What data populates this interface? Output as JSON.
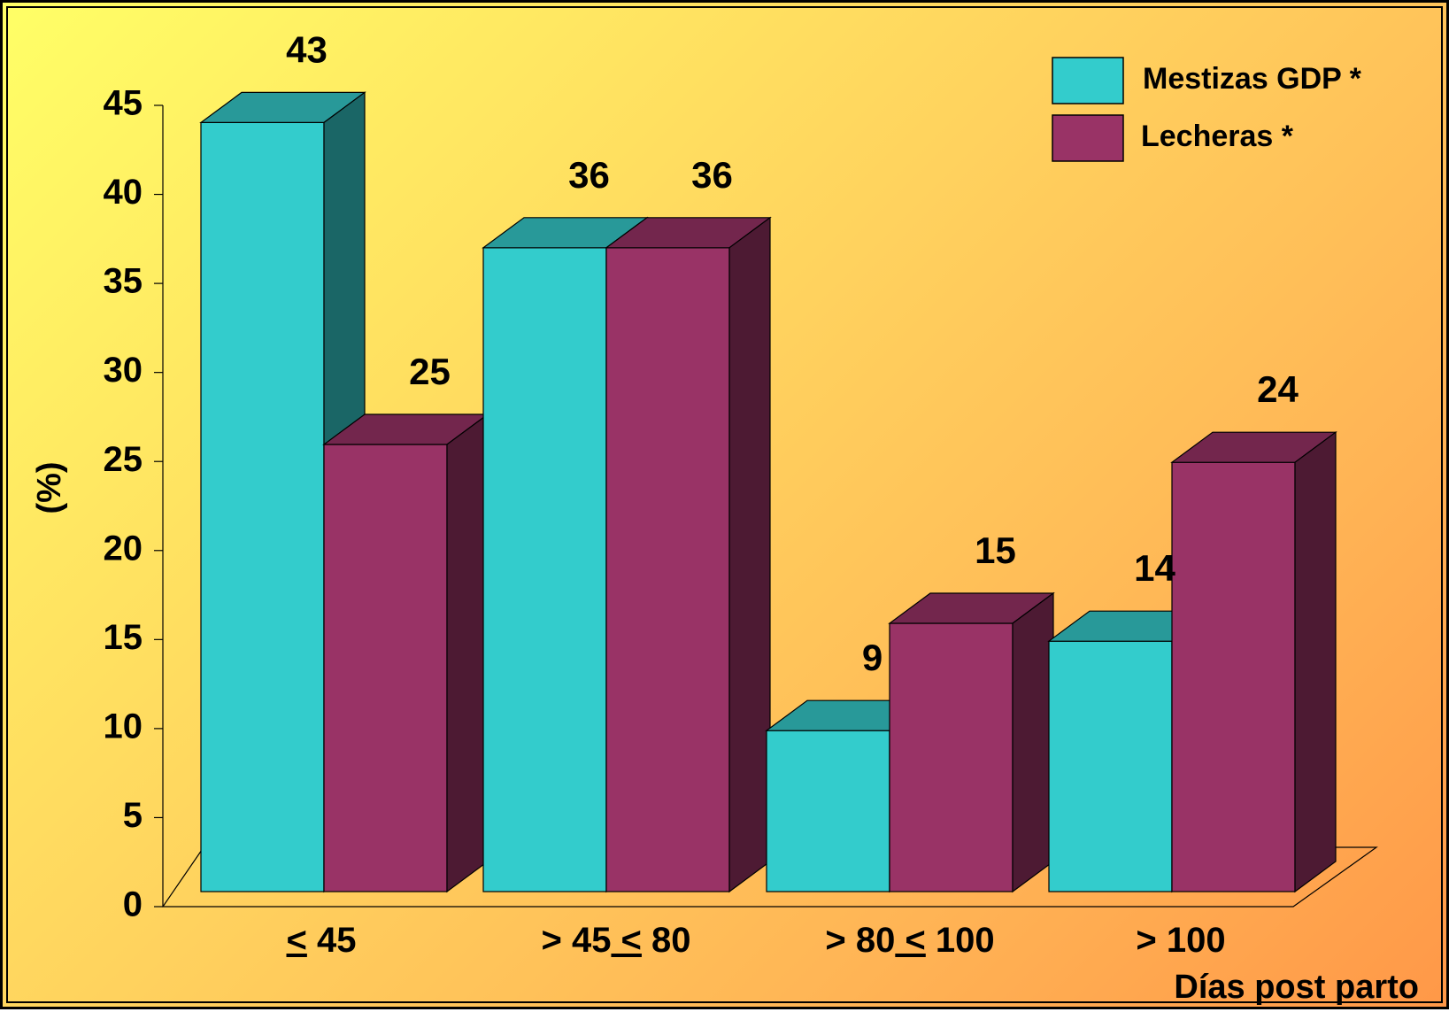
{
  "chart_data": {
    "type": "bar",
    "title": "",
    "xlabel": "Días post parto",
    "ylabel": "(%)",
    "ylim": [
      0,
      45
    ],
    "yticks": [
      0,
      5,
      10,
      15,
      20,
      25,
      30,
      35,
      40,
      45
    ],
    "categories": [
      {
        "pre": "",
        "op1": "<",
        "mid": "",
        "num": "45",
        "op2": "",
        "post": ""
      },
      {
        "pre": ">",
        "op1": "",
        "mid": "45",
        "num": "",
        "op2": "<",
        "post": "80"
      },
      {
        "pre": ">",
        "op1": "",
        "mid": "80",
        "num": "",
        "op2": "<",
        "post": "100"
      },
      {
        "pre": ">",
        "op1": "",
        "mid": "100",
        "num": "",
        "op2": "",
        "post": ""
      }
    ],
    "category_labels": [
      "≤ 45",
      "> 45 ≤ 80",
      "> 80 ≤ 100",
      "> 100"
    ],
    "series": [
      {
        "name": "Mestizas GDP *",
        "values": [
          43,
          36,
          9,
          14
        ],
        "color": "#33cccc",
        "top_color": "#289999",
        "side_color": "#1a6666"
      },
      {
        "name": "Lecheras *",
        "values": [
          25,
          36,
          15,
          24
        ],
        "color": "#993366",
        "top_color": "#73264d",
        "side_color": "#4d1a33"
      }
    ],
    "legend_position": "top-right",
    "grid": false,
    "style": "3d"
  }
}
